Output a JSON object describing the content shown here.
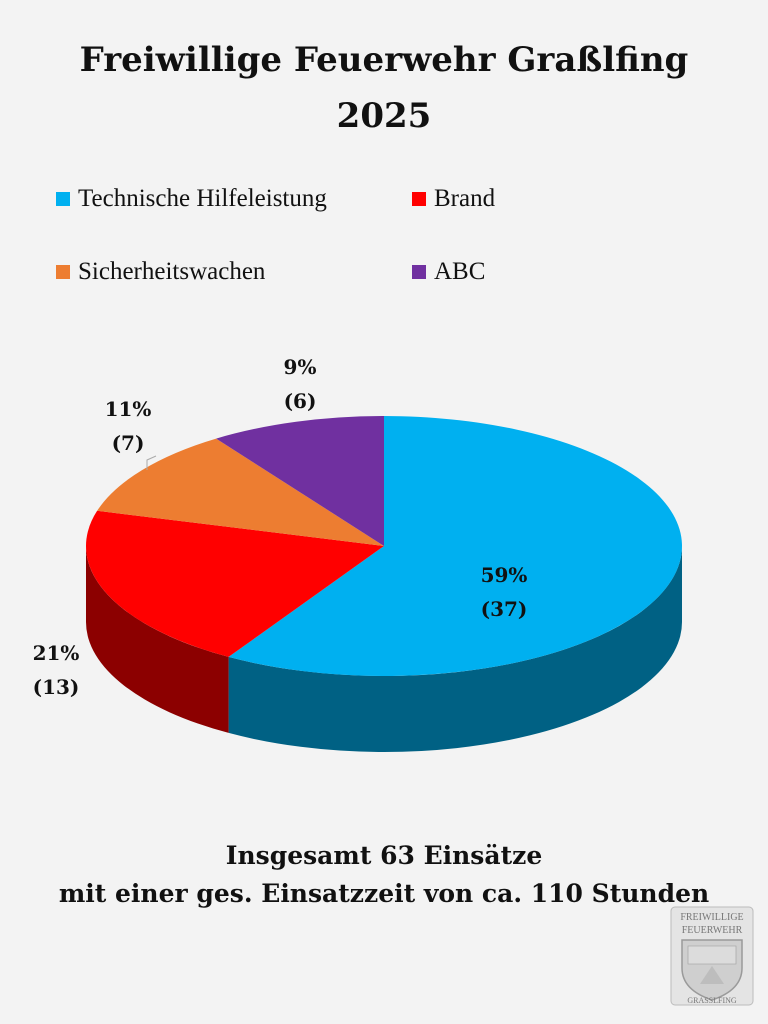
{
  "title": "Freiwillige Feuerwehr Graßlfing",
  "subtitle": "2025",
  "legend": [
    {
      "label": "Technische Hilfeleistung",
      "color": "#00b0f0"
    },
    {
      "label": "Brand",
      "color": "#ff0000"
    },
    {
      "label": "Sicherheitswachen",
      "color": "#ed7d31"
    },
    {
      "label": "ABC",
      "color": "#7030a0"
    }
  ],
  "chart_data": {
    "type": "pie",
    "style": "3d",
    "start": "12 o'clock, clockwise",
    "slices": [
      {
        "name": "Technische Hilfeleistung",
        "value": 37,
        "percent": "59%",
        "count": "(37)",
        "color": "#00b0f0"
      },
      {
        "name": "Brand",
        "value": 13,
        "percent": "21%",
        "count": "(13)",
        "color": "#ff0000"
      },
      {
        "name": "Sicherheitswachen",
        "value": 7,
        "percent": "11%",
        "count": "(7)",
        "color": "#ed7d31"
      },
      {
        "name": "ABC",
        "value": 6,
        "percent": "9%",
        "count": "(6)",
        "color": "#7030a0"
      }
    ]
  },
  "footer": {
    "line1": "Insgesamt 63 Einsätze",
    "line2": "mit einer ges. Einsatzzeit von ca. 110 Stunden"
  },
  "emblem": {
    "line1": "FREIWILLIGE",
    "line2": "FEUERWEHR",
    "line3": "GRASSLFING"
  }
}
